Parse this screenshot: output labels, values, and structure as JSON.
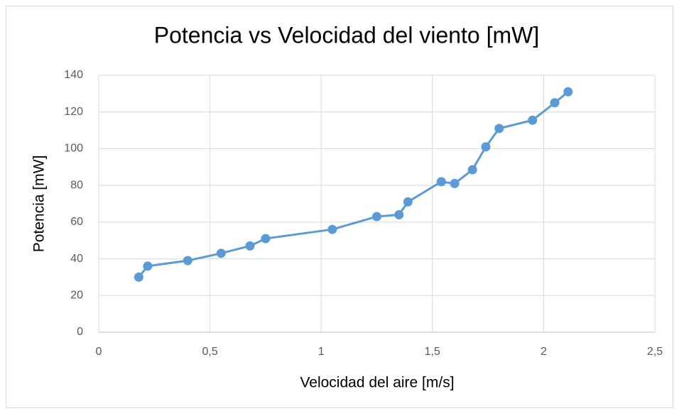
{
  "chart_data": {
    "type": "line",
    "title": "Potencia vs Velocidad del viento [mW]",
    "x_label": "Velocidad del aire [m/s]",
    "y_label": "Potencia [mW]",
    "x": [
      0.18,
      0.22,
      0.4,
      0.55,
      0.68,
      0.75,
      1.05,
      1.25,
      1.35,
      1.39,
      1.54,
      1.6,
      1.68,
      1.74,
      1.8,
      1.95,
      2.05,
      2.11
    ],
    "series": [
      {
        "color": "#5b9bd5",
        "values": [
          30,
          36,
          39,
          43,
          47,
          51,
          56,
          63,
          64,
          71,
          82,
          81,
          88.5,
          101,
          111,
          115.5,
          125,
          131
        ]
      }
    ],
    "xlim": [
      0,
      2.5
    ],
    "xticks": [
      0,
      {
        "value": 0.5,
        "label": "0,5"
      },
      1,
      {
        "value": 1.5,
        "label": "1,5"
      },
      2,
      {
        "value": 2.5,
        "label": "2,5"
      }
    ],
    "ylim": [
      0,
      140
    ],
    "yticks": [
      0,
      20,
      40,
      60,
      80,
      100,
      120,
      140
    ],
    "grid": true
  }
}
